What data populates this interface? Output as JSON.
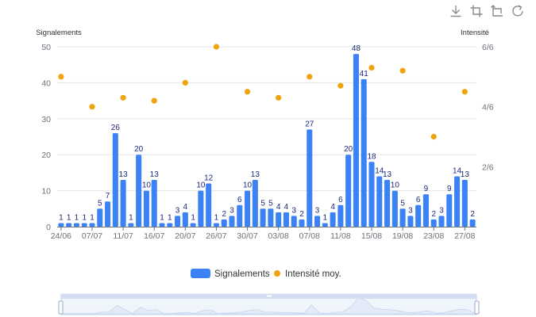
{
  "toolbox": {
    "icons": [
      "download-icon",
      "zoom-select-icon",
      "zoom-reset-icon",
      "restore-icon"
    ]
  },
  "colors": {
    "bar": "#3b82f6",
    "scatter": "#f0a30a",
    "grid": "#e6e6e6",
    "axis": "#6e7079",
    "label": "#1b2a7a",
    "slider_fill": "#dde6f7",
    "slider_border": "#c4d2ee",
    "slider_line": "#9db4e6"
  },
  "chart_data": {
    "type": "bar",
    "left_axis_name": "Signalements",
    "right_axis_name": "Intensité",
    "x_tick_labels": [
      "24/06",
      "07/07",
      "11/07",
      "16/07",
      "20/07",
      "26/07",
      "30/07",
      "03/08",
      "07/08",
      "11/08",
      "15/08",
      "19/08",
      "23/08",
      "27/08"
    ],
    "left_axis": {
      "min": 0,
      "max": 50,
      "ticks": [
        "0",
        "10",
        "20",
        "30",
        "40",
        "50"
      ]
    },
    "right_axis": {
      "min": 0,
      "max": 6,
      "ticks": [
        "2/6",
        "4/6",
        "6/6"
      ]
    },
    "grid": true,
    "series": [
      {
        "name": "Signalements",
        "type": "bar",
        "values": [
          1,
          1,
          1,
          1,
          1,
          5,
          7,
          26,
          13,
          1,
          20,
          10,
          13,
          1,
          1,
          3,
          4,
          1,
          10,
          12,
          1,
          2,
          3,
          6,
          10,
          13,
          5,
          5,
          4,
          4,
          3,
          2,
          27,
          3,
          1,
          4,
          6,
          20,
          48,
          41,
          18,
          14,
          13,
          10,
          5,
          3,
          6,
          9,
          2,
          3,
          9,
          14,
          13,
          2
        ]
      },
      {
        "name": "Intensité moy.",
        "type": "scatter",
        "points": [
          {
            "bar": 0,
            "value": 5.0
          },
          {
            "bar": 4,
            "value": 4.0
          },
          {
            "bar": 8,
            "value": 4.3
          },
          {
            "bar": 12,
            "value": 4.2
          },
          {
            "bar": 16,
            "value": 4.8
          },
          {
            "bar": 20,
            "value": 6.0
          },
          {
            "bar": 24,
            "value": 4.5
          },
          {
            "bar": 28,
            "value": 4.3
          },
          {
            "bar": 32,
            "value": 5.0
          },
          {
            "bar": 36,
            "value": 4.7
          },
          {
            "bar": 40,
            "value": 5.3
          },
          {
            "bar": 44,
            "value": 5.2
          },
          {
            "bar": 48,
            "value": 3.0
          },
          {
            "bar": 52,
            "value": 4.5
          }
        ]
      }
    ],
    "legend": {
      "placement": "bottom-center",
      "entries": [
        "Signalements",
        "Intensité moy."
      ]
    },
    "data_zoom": {
      "type": "slider",
      "start_fraction": 0,
      "end_fraction": 1
    }
  }
}
